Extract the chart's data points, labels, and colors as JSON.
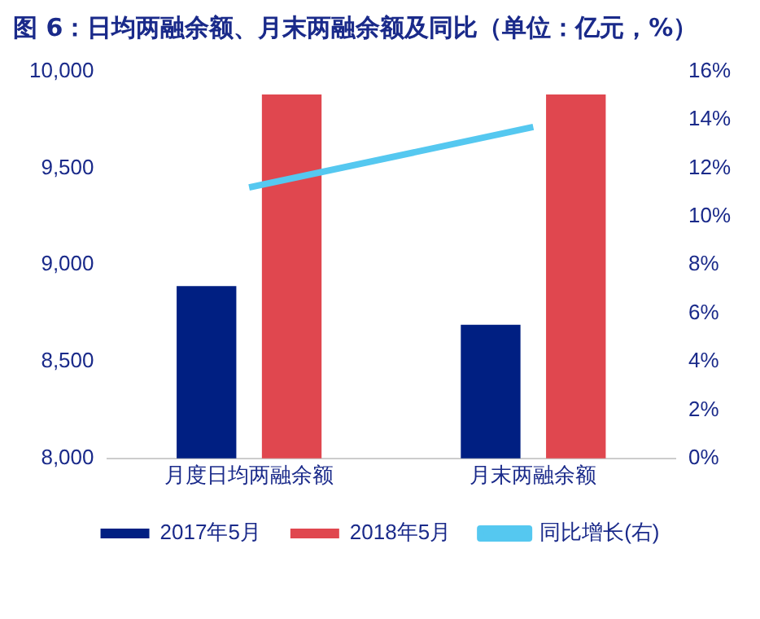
{
  "chart_data": {
    "type": "bar",
    "title": "图 6：日均两融余额、月末两融余额及同比（单位：亿元，%）",
    "categories": [
      "月度日均两融余额",
      "月末两融余额"
    ],
    "series": [
      {
        "name": "2017年5月",
        "color": "#001f82",
        "values": [
          8890,
          8690
        ]
      },
      {
        "name": "2018年5月",
        "color": "#e0474f",
        "values": [
          9880,
          9880
        ]
      },
      {
        "name": "同比增长(右)",
        "color": "#55c8f0",
        "type": "line",
        "axis": "y2",
        "values": [
          11.2,
          13.7
        ]
      }
    ],
    "ylim": [
      8000,
      10000
    ],
    "yticks": [
      {
        "value": 8000,
        "label": "8,000"
      },
      {
        "value": 8500,
        "label": "8,500"
      },
      {
        "value": 9000,
        "label": "9,000"
      },
      {
        "value": 9500,
        "label": "9,500"
      },
      {
        "value": 10000,
        "label": "10,000"
      }
    ],
    "y2lim": [
      0,
      16
    ],
    "y2ticks": [
      {
        "value": 0,
        "label": "0%"
      },
      {
        "value": 2,
        "label": "2%"
      },
      {
        "value": 4,
        "label": "4%"
      },
      {
        "value": 6,
        "label": "6%"
      },
      {
        "value": 8,
        "label": "8%"
      },
      {
        "value": 10,
        "label": "10%"
      },
      {
        "value": 12,
        "label": "12%"
      },
      {
        "value": 14,
        "label": "14%"
      },
      {
        "value": 16,
        "label": "16%"
      }
    ],
    "grid": false,
    "legend": "bottom",
    "marker": "none"
  }
}
